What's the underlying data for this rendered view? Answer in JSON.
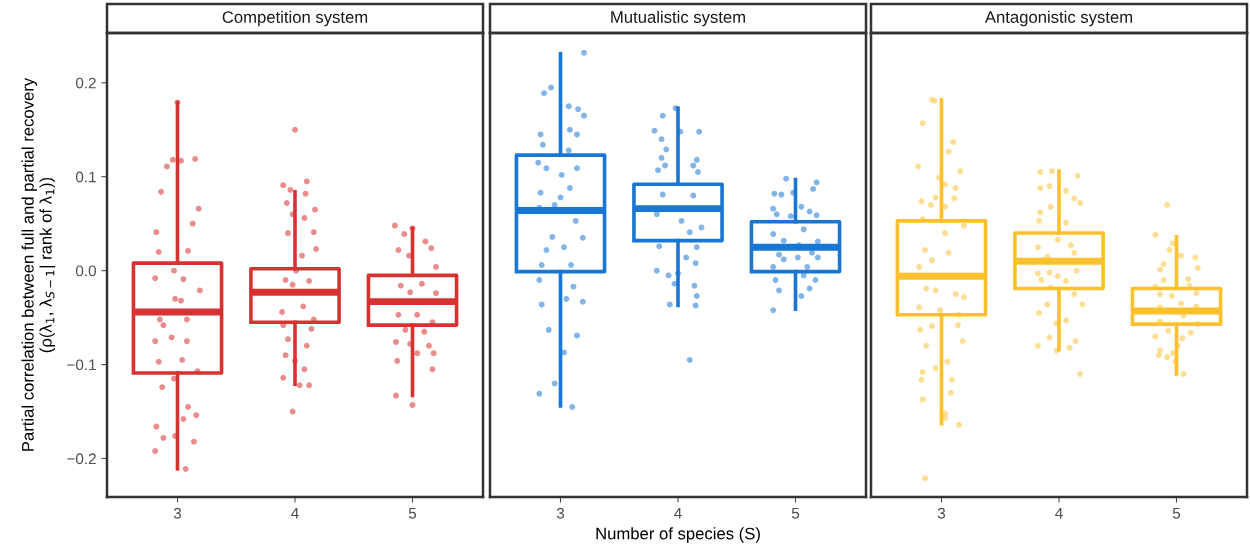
{
  "chart_data": [
    {
      "type": "box",
      "title": "Competition system",
      "ylabel": "Partial correlation between full and partial recovery\n(ρ(λ$_{1}$, λ$_{S−1}$| rank of λ$_{1}$))",
      "x": [
        3,
        4,
        5
      ],
      "xlim": [
        2.4,
        5.6
      ],
      "xticks": [
        3,
        4,
        5
      ],
      "ylim": [
        -0.241,
        0.253
      ],
      "yticks": [
        0.2,
        0.1,
        {
          "value": 0.0,
          "label": "0.0"
        },
        {
          "value": -0.1,
          "label": "−0.1"
        },
        {
          "value": -0.2,
          "label": "−0.2"
        }
      ],
      "grid": false,
      "series": [
        {
          "color": "#d73232",
          "boxes": [
            {
              "low": -0.211,
              "q1": -0.109,
              "median": -0.044,
              "q3": 0.008,
              "high": 0.179
            },
            {
              "low": -0.121,
              "q1": -0.055,
              "median": -0.023,
              "q3": 0.002,
              "high": 0.084
            },
            {
              "low": -0.133,
              "q1": -0.058,
              "median": -0.033,
              "q3": -0.005,
              "high": 0.045
            }
          ]
        },
        {
          "type": "scatter",
          "color": "#e06666",
          "x": [
            3.0,
            2.96,
            3.03,
            3.15,
            2.91,
            2.86,
            3.18,
            3.13,
            2.82,
            2.84,
            3.09,
            2.97,
            3.05,
            2.81,
            3.19,
            2.98,
            3.03,
            2.85,
            3.08,
            2.88,
            2.95,
            3.08,
            2.81,
            2.84,
            3.04,
            3.17,
            2.97,
            2.87,
            3.09,
            2.82,
            3.05,
            3.16,
            2.88,
            2.98,
            3.14,
            2.81,
            3.07,
            4.0,
            3.9,
            3.96,
            4.1,
            4.09,
            3.93,
            3.98,
            4.17,
            4.08,
            3.94,
            4.16,
            4.18,
            4.06,
            4.01,
            3.92,
            4.12,
            3.98,
            3.89,
            4.07,
            4.16,
            3.9,
            4.14,
            3.94,
            4.1,
            3.92,
            4.0,
            4.08,
            3.9,
            4.04,
            4.12,
            3.98,
            4.85,
            5.0,
            4.93,
            5.11,
            5.16,
            4.88,
            4.97,
            5.2,
            4.9,
            5.08,
            4.98,
            5.2,
            4.88,
            5.04,
            5.17,
            4.94,
            5.1,
            4.86,
            4.98,
            5.14,
            5.18,
            4.87,
            5.04,
            5.17,
            4.86,
            5.0
          ],
          "values": [
            0.179,
            0.118,
            0.117,
            0.119,
            0.111,
            0.084,
            0.066,
            0.05,
            0.041,
            0.02,
            0.021,
            0.0,
            -0.009,
            -0.008,
            -0.021,
            -0.03,
            -0.032,
            -0.052,
            -0.052,
            -0.058,
            -0.071,
            -0.075,
            -0.075,
            -0.097,
            -0.095,
            -0.107,
            -0.115,
            -0.124,
            -0.145,
            -0.166,
            -0.158,
            -0.154,
            -0.178,
            -0.176,
            -0.182,
            -0.192,
            -0.211,
            0.15,
            0.091,
            0.086,
            0.095,
            0.082,
            0.072,
            0.06,
            0.065,
            0.056,
            0.04,
            0.041,
            0.023,
            0.016,
            0.0,
            -0.01,
            -0.011,
            -0.015,
            -0.044,
            -0.038,
            -0.052,
            -0.058,
            -0.062,
            -0.073,
            -0.08,
            -0.09,
            -0.096,
            -0.105,
            -0.114,
            -0.122,
            -0.122,
            -0.15,
            0.048,
            0.045,
            0.039,
            0.031,
            0.024,
            0.022,
            0.016,
            0.004,
            -0.016,
            -0.014,
            -0.023,
            -0.024,
            -0.047,
            -0.047,
            -0.055,
            -0.063,
            -0.065,
            -0.076,
            -0.078,
            -0.08,
            -0.088,
            -0.096,
            -0.088,
            -0.105,
            -0.133,
            -0.143
          ]
        }
      ]
    },
    {
      "type": "box",
      "title": "Mutualistic system",
      "xlabel": "Number of species (S)",
      "x": [
        3,
        4,
        5
      ],
      "xlim": [
        2.4,
        5.6
      ],
      "xticks": [
        3,
        4,
        5
      ],
      "ylim": [
        -0.241,
        0.253
      ],
      "grid": false,
      "tick_labels": "x",
      "series": [
        {
          "color": "#1976d2",
          "boxes": [
            {
              "low": -0.144,
              "q1": -0.001,
              "median": 0.064,
              "q3": 0.123,
              "high": 0.231
            },
            {
              "low": -0.037,
              "q1": 0.032,
              "median": 0.066,
              "q3": 0.092,
              "high": 0.173
            },
            {
              "low": -0.041,
              "q1": -0.001,
              "median": 0.025,
              "q3": 0.052,
              "high": 0.097
            }
          ]
        },
        {
          "type": "scatter",
          "color": "#5a9be0",
          "x": [
            3.2,
            2.92,
            2.86,
            3.15,
            3.07,
            3.2,
            3.08,
            2.83,
            3.14,
            2.85,
            3.07,
            2.81,
            3.14,
            2.88,
            3.01,
            2.83,
            3.08,
            3.0,
            2.82,
            2.95,
            3.13,
            2.93,
            3.19,
            3.03,
            2.88,
            2.84,
            3.09,
            2.82,
            3.11,
            3.05,
            3.19,
            2.84,
            2.9,
            3.14,
            3.03,
            2.95,
            2.82,
            3.1,
            3.98,
            3.87,
            3.8,
            4.02,
            4.18,
            3.86,
            3.9,
            3.86,
            4.16,
            3.89,
            4.13,
            4.17,
            3.83,
            3.87,
            4.13,
            3.82,
            4.03,
            4.2,
            4.1,
            3.84,
            4.16,
            4.07,
            4.15,
            3.82,
            3.92,
            4.0,
            3.97,
            4.14,
            4.16,
            3.93,
            4.15,
            4.1,
            4.92,
            5.18,
            5.15,
            4.82,
            4.98,
            4.88,
            5.05,
            4.81,
            5.12,
            4.84,
            5.18,
            4.96,
            5.07,
            4.81,
            5.19,
            4.9,
            5.03,
            4.86,
            5.14,
            4.9,
            5.02,
            5.19,
            4.81,
            5.1,
            4.83,
            5.17,
            5.07,
            4.86,
            5.12,
            5.05,
            4.81
          ],
          "values": [
            0.232,
            0.195,
            0.189,
            0.172,
            0.175,
            0.165,
            0.15,
            0.145,
            0.145,
            0.134,
            0.128,
            0.115,
            0.109,
            0.109,
            0.102,
            0.083,
            0.088,
            0.078,
            0.067,
            0.07,
            0.053,
            0.036,
            0.035,
            0.025,
            0.022,
            0.006,
            0.006,
            -0.01,
            -0.017,
            -0.03,
            -0.033,
            -0.036,
            -0.063,
            -0.069,
            -0.087,
            -0.12,
            -0.131,
            -0.145,
            0.173,
            0.165,
            0.149,
            0.148,
            0.148,
            0.14,
            0.129,
            0.12,
            0.118,
            0.112,
            0.112,
            0.105,
            0.107,
            0.081,
            0.08,
            0.06,
            0.053,
            0.046,
            0.041,
            0.026,
            0.025,
            0.014,
            0.008,
            0.0,
            -0.005,
            -0.003,
            -0.014,
            -0.016,
            -0.027,
            -0.036,
            -0.037,
            -0.095,
            0.098,
            0.094,
            0.087,
            0.082,
            0.083,
            0.081,
            0.068,
            0.066,
            0.063,
            0.06,
            0.059,
            0.058,
            0.044,
            0.039,
            0.031,
            0.032,
            0.027,
            0.017,
            0.019,
            0.012,
            0.014,
            0.014,
            0.004,
            0.004,
            -0.01,
            -0.01,
            -0.005,
            -0.021,
            -0.019,
            -0.027,
            -0.042
          ]
        }
      ]
    },
    {
      "type": "box",
      "title": "Antagonistic system",
      "x": [
        3,
        4,
        5
      ],
      "xlim": [
        2.4,
        5.6
      ],
      "xticks": [
        3,
        4,
        5
      ],
      "ylim": [
        -0.241,
        0.253
      ],
      "grid": false,
      "tick_labels": "x",
      "series": [
        {
          "color": "#fbc02d",
          "boxes": [
            {
              "low": -0.163,
              "q1": -0.047,
              "median": -0.006,
              "q3": 0.053,
              "high": 0.182
            },
            {
              "low": -0.084,
              "q1": -0.019,
              "median": 0.01,
              "q3": 0.04,
              "high": 0.106
            },
            {
              "low": -0.11,
              "q1": -0.057,
              "median": -0.043,
              "q3": -0.019,
              "high": 0.036
            }
          ]
        },
        {
          "type": "scatter",
          "color": "#fcd36e",
          "x": [
            2.92,
            2.94,
            2.84,
            3.1,
            3.06,
            2.8,
            3.16,
            2.98,
            3.03,
            3.12,
            2.95,
            2.83,
            3.11,
            2.91,
            3.03,
            2.84,
            3.19,
            3.03,
            2.86,
            3.06,
            2.92,
            2.81,
            2.87,
            2.95,
            3.12,
            3.19,
            2.81,
            2.99,
            3.15,
            2.82,
            2.92,
            3.14,
            2.87,
            3.18,
            3.05,
            2.95,
            2.84,
            3.09,
            2.83,
            3.08,
            2.84,
            3.03,
            3.03,
            3.15,
            2.86,
            3.94,
            3.84,
            4.16,
            3.92,
            3.84,
            4.06,
            4.13,
            4.18,
            3.93,
            3.84,
            3.83,
            4.06,
            3.99,
            4.1,
            3.82,
            3.9,
            4.13,
            4.15,
            3.82,
            3.92,
            3.99,
            3.85,
            4.06,
            3.93,
            4.13,
            4.2,
            3.9,
            3.83,
            3.98,
            4.06,
            3.92,
            4.14,
            3.82,
            4.09,
            3.98,
            4.18,
            4.92,
            4.82,
            4.97,
            4.94,
            5.04,
            5.16,
            4.89,
            5.18,
            4.86,
            5.1,
            4.89,
            5.11,
            4.82,
            5.17,
            4.86,
            4.96,
            5.04,
            4.86,
            5.17,
            5.06,
            4.86,
            5.18,
            4.93,
            5.12,
            4.82,
            5.05,
            5.01,
            4.86,
            4.97,
            4.85,
            4.92,
            4.99,
            5.06
          ],
          "values": [
            0.182,
            0.181,
            0.157,
            0.137,
            0.127,
            0.111,
            0.106,
            0.099,
            0.092,
            0.088,
            0.078,
            0.074,
            0.077,
            0.07,
            0.068,
            0.055,
            0.048,
            0.04,
            0.022,
            0.019,
            0.011,
            0.004,
            -0.019,
            -0.021,
            -0.025,
            -0.028,
            -0.039,
            -0.042,
            -0.047,
            -0.063,
            -0.059,
            -0.058,
            -0.08,
            -0.075,
            -0.097,
            -0.104,
            -0.108,
            -0.116,
            -0.116,
            -0.13,
            -0.137,
            -0.152,
            -0.157,
            -0.164,
            -0.221,
            0.106,
            0.105,
            0.101,
            0.09,
            0.088,
            0.085,
            0.077,
            0.072,
            0.068,
            0.062,
            0.053,
            0.051,
            0.033,
            0.027,
            0.025,
            0.015,
            0.019,
            0.0,
            -0.003,
            -0.002,
            -0.006,
            -0.01,
            -0.011,
            -0.018,
            -0.025,
            -0.036,
            -0.036,
            -0.045,
            -0.056,
            -0.053,
            -0.071,
            -0.075,
            -0.08,
            -0.082,
            -0.085,
            -0.11,
            0.07,
            0.038,
            0.029,
            0.022,
            0.016,
            0.014,
            0.007,
            0.003,
            0.001,
            -0.009,
            -0.01,
            -0.016,
            -0.017,
            -0.024,
            -0.025,
            -0.027,
            -0.035,
            -0.039,
            -0.038,
            -0.048,
            -0.054,
            -0.057,
            -0.064,
            -0.066,
            -0.07,
            -0.072,
            -0.08,
            -0.085,
            -0.088,
            -0.09,
            -0.092,
            -0.097,
            -0.11
          ]
        }
      ]
    }
  ]
}
